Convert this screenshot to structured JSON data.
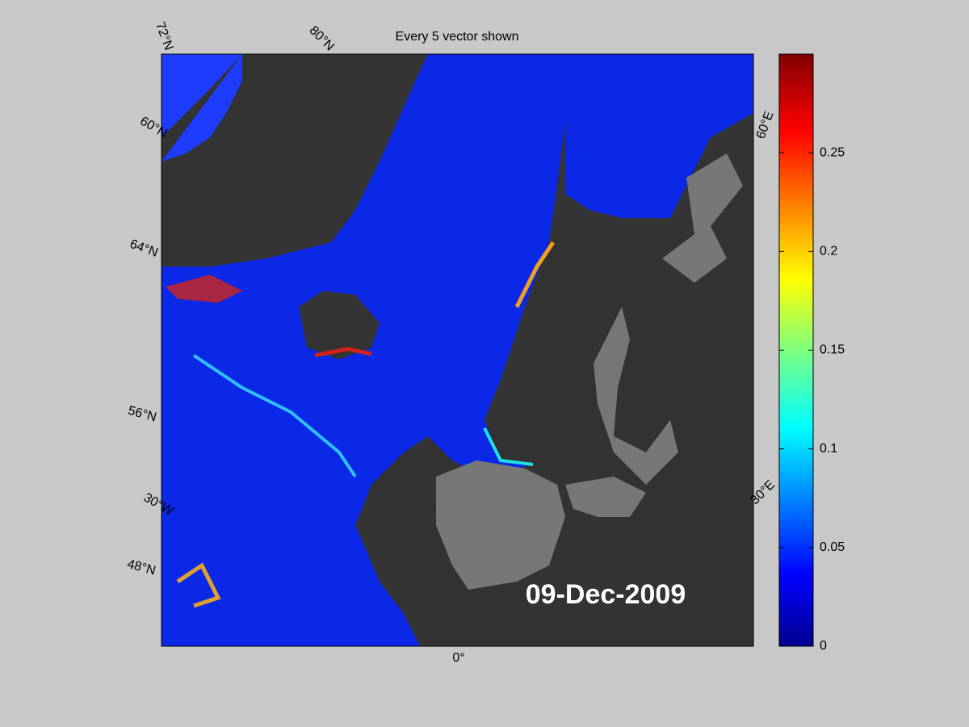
{
  "title": "Every 5 vector shown",
  "date": "09-Dec-2009",
  "graticule_labels": [
    "72°N",
    "80°N",
    "60°N",
    "64°N",
    "56°N",
    "30°W",
    "48°N",
    "0°",
    "60°E",
    "30°E"
  ],
  "colorbar": {
    "lim": [
      0,
      0.3
    ],
    "ticks": [
      0,
      0.05,
      0.1,
      0.15,
      0.2,
      0.25
    ]
  }
}
